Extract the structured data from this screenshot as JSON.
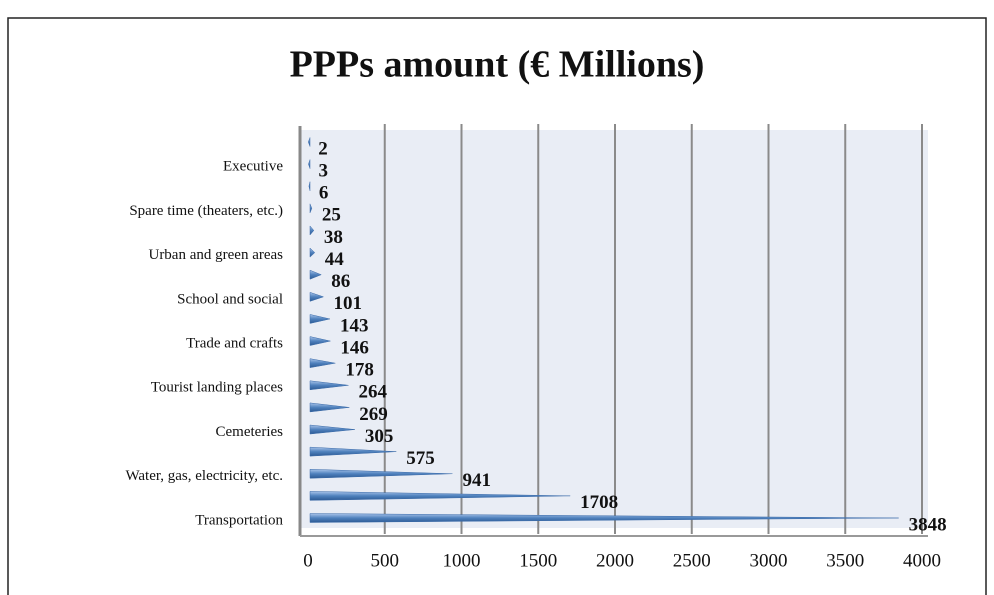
{
  "chart_data": {
    "type": "bar",
    "orientation": "horizontal",
    "title": "PPPs amount (€ Millions)",
    "categories": [
      "Transportation",
      null,
      "Water, gas, electricity, etc.",
      null,
      "Cemeteries",
      null,
      "Tourist landing places",
      null,
      "Trade and crafts",
      null,
      "School and social",
      null,
      "Urban and green areas",
      null,
      "Spare time (theaters, etc.)",
      null,
      "Executive",
      null
    ],
    "values": [
      3848,
      1708,
      941,
      575,
      305,
      269,
      264,
      178,
      146,
      143,
      101,
      86,
      44,
      38,
      25,
      6,
      3,
      2
    ],
    "color": "#4f81bd",
    "xlim": [
      0,
      4000
    ],
    "xticks": [
      0,
      500,
      1000,
      1500,
      2000,
      2500,
      3000,
      3500,
      4000
    ],
    "grid": true
  }
}
